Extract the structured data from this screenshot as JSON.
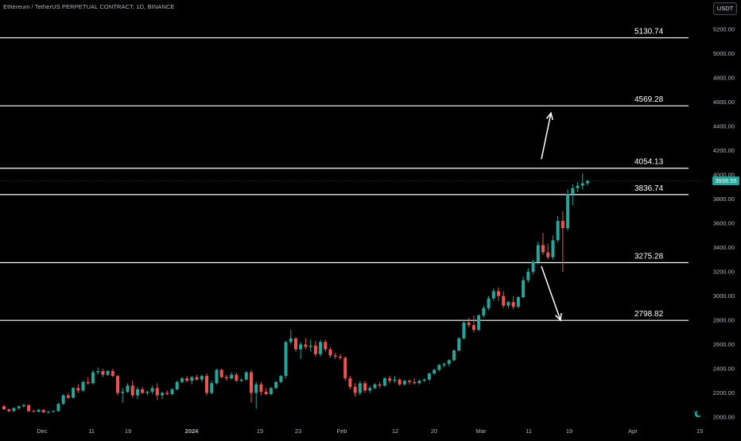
{
  "header": {
    "symbol_title": "Ethereum / TetherUS PERPETUAL CONTRACT, 1D, BINANCE",
    "currency_button": "USDT"
  },
  "price_scale": {
    "ticks": [
      "5200.00",
      "5000.00",
      "4800.00",
      "4600.00",
      "4400.00",
      "4200.00",
      "4000.00",
      "3800.00",
      "3600.00",
      "3400.00",
      "3200.00",
      "3000.00",
      "2800.00",
      "2600.00",
      "2400.00",
      "2200.00",
      "2000.00"
    ],
    "current_price": "3936.55",
    "current_price_color": "#26a69a"
  },
  "time_scale": {
    "labels": [
      "Dec",
      "11",
      "19",
      "2024",
      "15",
      "23",
      "Feb",
      "12",
      "20",
      "Mar",
      "11",
      "19",
      "Apr",
      "15"
    ]
  },
  "levels": [
    {
      "value": 5130.74,
      "label": "5130.74"
    },
    {
      "value": 4569.28,
      "label": "4569.28"
    },
    {
      "value": 4054.13,
      "label": "4054.13"
    },
    {
      "value": 3836.74,
      "label": "3836.74"
    },
    {
      "value": 3275.28,
      "label": "3275.28"
    },
    {
      "value": 2798.82,
      "label": "2798.82"
    }
  ],
  "annotations": [
    {
      "type": "arrow",
      "direction": "up",
      "from_price": 4130,
      "to_price": 4510
    },
    {
      "type": "arrow",
      "direction": "down",
      "from_price": 3245,
      "to_price": 2800
    }
  ],
  "colors": {
    "up": "#26a69a",
    "down": "#ef5350",
    "level_line": "#ffffff",
    "axis_text": "#b2b5be",
    "background": "#000000"
  },
  "chart_data": {
    "type": "candlestick",
    "title": "",
    "ylim": [
      1970,
      5300
    ],
    "y_scale": "linear",
    "grid": false,
    "legend": "none",
    "candles": [
      [
        2090,
        2100,
        2060,
        2065
      ],
      [
        2065,
        2070,
        2040,
        2050
      ],
      [
        2050,
        2080,
        2045,
        2075
      ],
      [
        2075,
        2095,
        2060,
        2090
      ],
      [
        2090,
        2110,
        2080,
        2100
      ],
      [
        2100,
        2105,
        2040,
        2050
      ],
      [
        2050,
        2060,
        2040,
        2045
      ],
      [
        2045,
        2070,
        2040,
        2060
      ],
      [
        2060,
        2065,
        2035,
        2040
      ],
      [
        2040,
        2050,
        2030,
        2045
      ],
      [
        2045,
        2060,
        2040,
        2050
      ],
      [
        2050,
        2120,
        2045,
        2110
      ],
      [
        2110,
        2190,
        2100,
        2180
      ],
      [
        2180,
        2200,
        2150,
        2160
      ],
      [
        2160,
        2250,
        2155,
        2240
      ],
      [
        2240,
        2270,
        2200,
        2220
      ],
      [
        2220,
        2300,
        2210,
        2290
      ],
      [
        2290,
        2330,
        2270,
        2280
      ],
      [
        2280,
        2390,
        2270,
        2370
      ],
      [
        2370,
        2410,
        2350,
        2380
      ],
      [
        2380,
        2400,
        2330,
        2350
      ],
      [
        2350,
        2390,
        2340,
        2380
      ],
      [
        2380,
        2400,
        2330,
        2340
      ],
      [
        2340,
        2350,
        2180,
        2200
      ],
      [
        2200,
        2240,
        2120,
        2210
      ],
      [
        2210,
        2280,
        2200,
        2260
      ],
      [
        2260,
        2300,
        2160,
        2180
      ],
      [
        2180,
        2250,
        2150,
        2230
      ],
      [
        2230,
        2250,
        2190,
        2200
      ],
      [
        2200,
        2220,
        2180,
        2210
      ],
      [
        2210,
        2260,
        2190,
        2240
      ],
      [
        2240,
        2280,
        2140,
        2180
      ],
      [
        2180,
        2210,
        2150,
        2200
      ],
      [
        2200,
        2220,
        2180,
        2190
      ],
      [
        2190,
        2240,
        2180,
        2230
      ],
      [
        2230,
        2300,
        2220,
        2290
      ],
      [
        2290,
        2330,
        2280,
        2320
      ],
      [
        2320,
        2340,
        2290,
        2300
      ],
      [
        2300,
        2340,
        2270,
        2330
      ],
      [
        2330,
        2350,
        2300,
        2310
      ],
      [
        2310,
        2350,
        2290,
        2340
      ],
      [
        2340,
        2360,
        2180,
        2200
      ],
      [
        2200,
        2300,
        2190,
        2280
      ],
      [
        2280,
        2400,
        2270,
        2390
      ],
      [
        2390,
        2400,
        2320,
        2330
      ],
      [
        2330,
        2350,
        2300,
        2320
      ],
      [
        2320,
        2370,
        2310,
        2350
      ],
      [
        2350,
        2370,
        2290,
        2300
      ],
      [
        2300,
        2320,
        2290,
        2310
      ],
      [
        2310,
        2380,
        2300,
        2370
      ],
      [
        2370,
        2390,
        2120,
        2200
      ],
      [
        2200,
        2290,
        2070,
        2270
      ],
      [
        2270,
        2290,
        2180,
        2210
      ],
      [
        2210,
        2240,
        2180,
        2190
      ],
      [
        2190,
        2250,
        2180,
        2240
      ],
      [
        2240,
        2300,
        2230,
        2290
      ],
      [
        2290,
        2350,
        2280,
        2340
      ],
      [
        2340,
        2630,
        2320,
        2620
      ],
      [
        2620,
        2720,
        2600,
        2650
      ],
      [
        2650,
        2660,
        2540,
        2560
      ],
      [
        2560,
        2620,
        2480,
        2600
      ],
      [
        2600,
        2650,
        2560,
        2580
      ],
      [
        2580,
        2640,
        2540,
        2590
      ],
      [
        2590,
        2630,
        2500,
        2520
      ],
      [
        2520,
        2640,
        2500,
        2620
      ],
      [
        2620,
        2640,
        2540,
        2560
      ],
      [
        2560,
        2580,
        2490,
        2510
      ],
      [
        2510,
        2530,
        2480,
        2500
      ],
      [
        2500,
        2520,
        2470,
        2490
      ],
      [
        2490,
        2500,
        2300,
        2320
      ],
      [
        2320,
        2340,
        2230,
        2250
      ],
      [
        2250,
        2280,
        2170,
        2200
      ],
      [
        2200,
        2300,
        2180,
        2280
      ],
      [
        2280,
        2300,
        2200,
        2220
      ],
      [
        2220,
        2260,
        2200,
        2240
      ],
      [
        2240,
        2280,
        2230,
        2270
      ],
      [
        2270,
        2290,
        2240,
        2260
      ],
      [
        2260,
        2330,
        2250,
        2320
      ],
      [
        2320,
        2340,
        2280,
        2300
      ],
      [
        2300,
        2340,
        2280,
        2310
      ],
      [
        2310,
        2320,
        2260,
        2270
      ],
      [
        2270,
        2310,
        2260,
        2300
      ],
      [
        2300,
        2310,
        2270,
        2290
      ],
      [
        2290,
        2320,
        2270,
        2280
      ],
      [
        2280,
        2310,
        2270,
        2300
      ],
      [
        2300,
        2320,
        2290,
        2310
      ],
      [
        2310,
        2370,
        2300,
        2360
      ],
      [
        2360,
        2400,
        2350,
        2390
      ],
      [
        2390,
        2440,
        2380,
        2430
      ],
      [
        2430,
        2450,
        2410,
        2440
      ],
      [
        2440,
        2480,
        2420,
        2470
      ],
      [
        2470,
        2560,
        2460,
        2550
      ],
      [
        2550,
        2660,
        2540,
        2650
      ],
      [
        2650,
        2800,
        2640,
        2780
      ],
      [
        2780,
        2820,
        2740,
        2760
      ],
      [
        2760,
        2840,
        2700,
        2720
      ],
      [
        2720,
        2850,
        2710,
        2840
      ],
      [
        2840,
        2920,
        2820,
        2900
      ],
      [
        2900,
        3000,
        2880,
        2980
      ],
      [
        2980,
        3060,
        2960,
        3040
      ],
      [
        3040,
        3070,
        2960,
        3000
      ],
      [
        3000,
        3040,
        2900,
        2920
      ],
      [
        2920,
        2960,
        2900,
        2950
      ],
      [
        2950,
        3000,
        2890,
        2910
      ],
      [
        2910,
        3000,
        2900,
        2990
      ],
      [
        2990,
        3160,
        2980,
        3130
      ],
      [
        3130,
        3230,
        3110,
        3200
      ],
      [
        3200,
        3300,
        3180,
        3280
      ],
      [
        3280,
        3450,
        3260,
        3420
      ],
      [
        3420,
        3520,
        3340,
        3360
      ],
      [
        3360,
        3430,
        3300,
        3320
      ],
      [
        3320,
        3500,
        3300,
        3460
      ],
      [
        3460,
        3660,
        3440,
        3620
      ],
      [
        3620,
        3700,
        3200,
        3560
      ],
      [
        3560,
        3880,
        3540,
        3840
      ],
      [
        3840,
        3920,
        3750,
        3890
      ],
      [
        3890,
        3940,
        3860,
        3910
      ],
      [
        3910,
        4010,
        3880,
        3930
      ],
      [
        3930,
        3960,
        3910,
        3950
      ]
    ]
  }
}
